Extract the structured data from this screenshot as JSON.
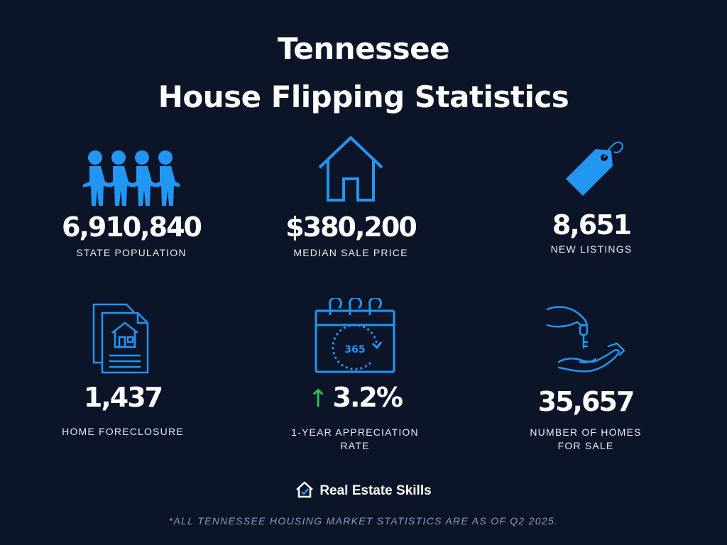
{
  "title": {
    "line1": "Tennessee",
    "line2": "House Flipping Statistics"
  },
  "colors": {
    "background": "#0c1428",
    "accent_blue": "#2196f3",
    "arrow_green": "#22c55e",
    "footnote": "#8a9bbf"
  },
  "stats": [
    {
      "icon": "people-chain-icon",
      "value": "6,910,840",
      "label": "STATE POPULATION"
    },
    {
      "icon": "house-icon",
      "value": "$380,200",
      "label": "MEDIAN SALE PRICE"
    },
    {
      "icon": "price-tag-icon",
      "value": "8,651",
      "label": "NEW LISTINGS"
    },
    {
      "icon": "foreclosure-document-icon",
      "value": "1,437",
      "label": "HOME FORECLOSURE"
    },
    {
      "icon": "calendar-365-icon",
      "value": "3.2%",
      "label_line1": "1-YEAR APPRECIATION",
      "label_line2": "RATE",
      "trend_arrow": "↑",
      "calendar_text": "365"
    },
    {
      "icon": "hand-key-icon",
      "value": "35,657",
      "label_line1": "NUMBER OF HOMES",
      "label_line2": "FOR SALE"
    }
  ],
  "logo": {
    "icon": "house-check-icon",
    "text": "Real Estate Skills"
  },
  "footnote": "*ALL TENNESSEE HOUSING MARKET STATISTICS ARE AS OF Q2 2025."
}
